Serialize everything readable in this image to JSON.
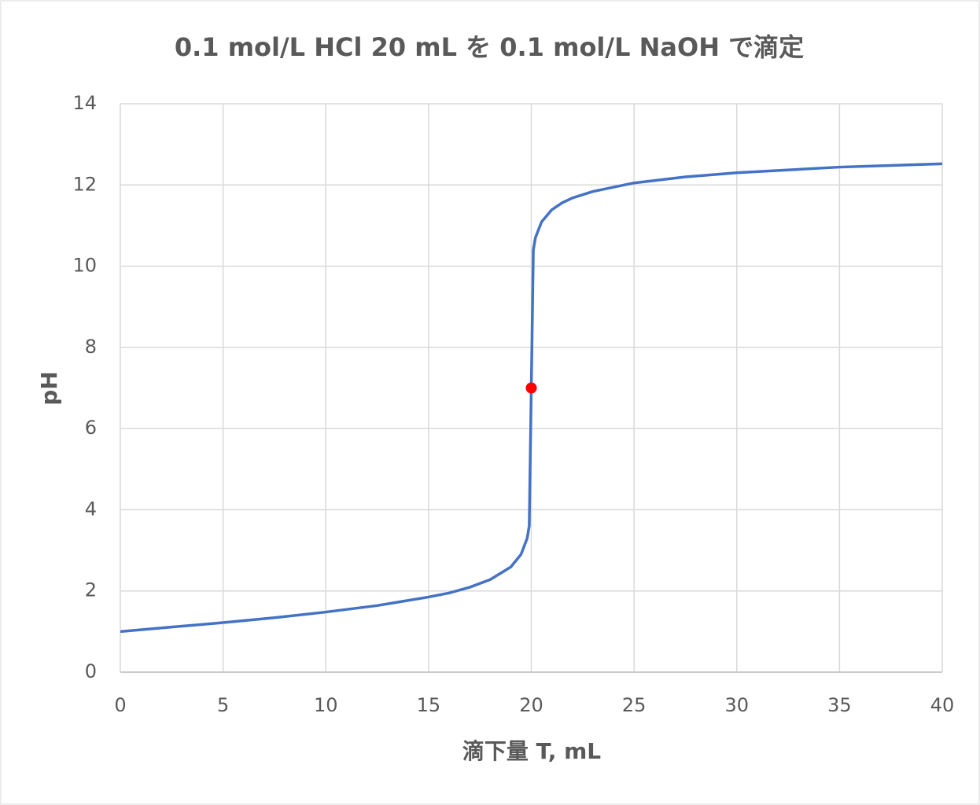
{
  "chart_data": {
    "type": "line",
    "title": "0.1 mol/L HCl 20 mL を 0.1 mol/L NaOH で滴定",
    "x_label": "滴下量 T, mL",
    "y_label": "pH",
    "series": [
      {
        "type": "line",
        "color": "#4472c4",
        "x": [
          0,
          2.5,
          5,
          7.5,
          10,
          12.5,
          15,
          16,
          17,
          18,
          19,
          19.5,
          19.8,
          19.9,
          20,
          20.1,
          20.2,
          20.5,
          21,
          21.5,
          22,
          23,
          25,
          27.5,
          30,
          35,
          40
        ],
        "values": [
          1,
          1.11,
          1.22,
          1.34,
          1.48,
          1.64,
          1.85,
          1.95,
          2.09,
          2.28,
          2.59,
          2.9,
          3.3,
          3.6,
          7,
          10.4,
          10.7,
          11.09,
          11.39,
          11.56,
          11.68,
          11.84,
          12.05,
          12.2,
          12.3,
          12.44,
          12.52
        ]
      },
      {
        "type": "scatter",
        "color": "#ff0000",
        "x": [
          20
        ],
        "values": [
          7
        ]
      }
    ],
    "xlim": [
      0,
      40
    ],
    "xticks": [
      0,
      5,
      10,
      15,
      20,
      25,
      30,
      35,
      40
    ],
    "ylim": [
      0,
      14
    ],
    "yticks": [
      0,
      2,
      4,
      6,
      8,
      10,
      12,
      14
    ],
    "grid": true
  }
}
